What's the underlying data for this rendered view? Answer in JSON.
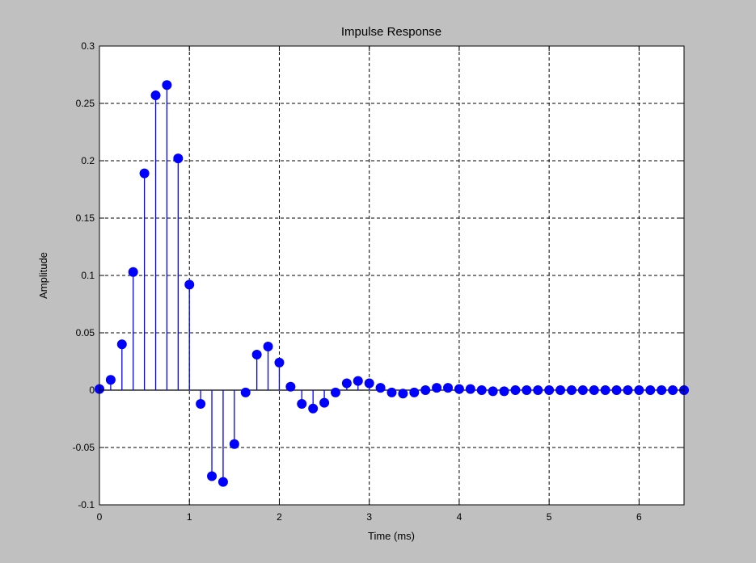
{
  "chart_data": {
    "type": "stem",
    "title": "Impulse Response",
    "xlabel": "Time (ms)",
    "ylabel": "Amplitude",
    "xlim": [
      0,
      6.5
    ],
    "ylim": [
      -0.1,
      0.3
    ],
    "xticks": [
      0,
      1,
      2,
      3,
      4,
      5,
      6
    ],
    "xtick_labels": [
      "0",
      "1",
      "2",
      "3",
      "4",
      "5",
      "6"
    ],
    "yticks": [
      -0.1,
      -0.05,
      0,
      0.05,
      0.1,
      0.15,
      0.2,
      0.25,
      0.3
    ],
    "ytick_labels": [
      "-0.1",
      "-0.05",
      "0",
      "0.05",
      "0.1",
      "0.15",
      "0.2",
      "0.25",
      "0.3"
    ],
    "grid": true,
    "colors": {
      "stem": "#0000ff",
      "baseline": "#000000",
      "grid": "#000000",
      "axes_bg": "#ffffff",
      "figure_bg": "#c0c0c0"
    },
    "series": [
      {
        "x": [
          0,
          0.125,
          0.25,
          0.375,
          0.5,
          0.625,
          0.75,
          0.875,
          1,
          1.125,
          1.25,
          1.375,
          1.5,
          1.625,
          1.75,
          1.875,
          2,
          2.125,
          2.25,
          2.375,
          2.5,
          2.625,
          2.75,
          2.875,
          3,
          3.125,
          3.25,
          3.375,
          3.5,
          3.625,
          3.75,
          3.875,
          4,
          4.125,
          4.25,
          4.375,
          4.5,
          4.625,
          4.75,
          4.875,
          5,
          5.125,
          5.25,
          5.375,
          5.5,
          5.625,
          5.75,
          5.875,
          6,
          6.125,
          6.25,
          6.375,
          6.5
        ],
        "values": [
          0.001,
          0.009,
          0.04,
          0.103,
          0.189,
          0.257,
          0.266,
          0.202,
          0.092,
          -0.012,
          -0.075,
          -0.08,
          -0.047,
          -0.002,
          0.031,
          0.038,
          0.024,
          0.003,
          -0.012,
          -0.016,
          -0.011,
          -0.002,
          0.006,
          0.008,
          0.006,
          0.002,
          -0.002,
          -0.003,
          -0.002,
          0.0,
          0.002,
          0.002,
          0.001,
          0.001,
          0.0,
          -0.001,
          -0.001,
          0.0,
          0.0,
          0.0,
          0.0,
          0.0,
          0.0,
          0.0,
          0.0,
          0.0,
          0.0,
          0.0,
          0.0,
          0.0,
          0.0,
          0.0,
          0.0
        ]
      }
    ]
  }
}
